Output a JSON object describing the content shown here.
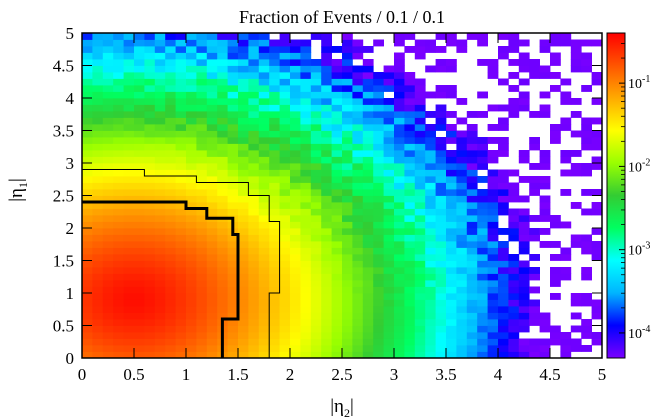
{
  "chart_data": {
    "type": "heatmap",
    "title": "Fraction of Events / 0.1 / 0.1",
    "xlabel": "|η₂|",
    "ylabel": "|η₁|",
    "xlim": [
      0,
      5
    ],
    "ylim": [
      0,
      5
    ],
    "bin_width": [
      0.1,
      0.1
    ],
    "x_ticks": [
      "0",
      "0.5",
      "1",
      "1.5",
      "2",
      "2.5",
      "3",
      "3.5",
      "4",
      "4.5",
      "5"
    ],
    "y_ticks": [
      "0",
      "0.5",
      "1",
      "1.5",
      "2",
      "2.5",
      "3",
      "3.5",
      "4",
      "4.5",
      "5"
    ],
    "z_scale": "log",
    "zlim": [
      5e-05,
      0.4
    ],
    "colorbar_labels": [
      {
        "value": 0.1,
        "base": "10",
        "exp": "-1"
      },
      {
        "value": 0.01,
        "base": "10",
        "exp": "-2"
      },
      {
        "value": 0.001,
        "base": "10",
        "exp": "-3"
      },
      {
        "value": 0.0001,
        "base": "10",
        "exp": "-4"
      }
    ],
    "colormap": [
      "#7a00ff",
      "#0000ff",
      "#00b4ff",
      "#00ffff",
      "#00ff60",
      "#33cc33",
      "#99ff00",
      "#ffff00",
      "#ffaa00",
      "#ff5500",
      "#ff0000"
    ],
    "peak": {
      "eta2": 0.5,
      "eta1": 0.9,
      "value": 0.35
    },
    "contours": [
      {
        "level": "inner",
        "style": "thick",
        "boundary_eta2_vs_eta1": [
          [
            1.35,
            0
          ],
          [
            1.35,
            0.5
          ],
          [
            1.5,
            0.6
          ],
          [
            1.5,
            1.5
          ],
          [
            1.45,
            1.9
          ],
          [
            1.2,
            2.15
          ],
          [
            1.0,
            2.3
          ],
          [
            0,
            2.4
          ]
        ]
      },
      {
        "level": "outer",
        "style": "thin",
        "boundary_eta2_vs_eta1": [
          [
            1.8,
            0
          ],
          [
            1.8,
            0.8
          ],
          [
            1.9,
            1.0
          ],
          [
            1.9,
            1.8
          ],
          [
            1.8,
            2.1
          ],
          [
            1.6,
            2.5
          ],
          [
            1.1,
            2.7
          ],
          [
            0.6,
            2.8
          ],
          [
            0.1,
            2.9
          ],
          [
            0,
            2.9
          ]
        ]
      }
    ],
    "grid": false,
    "legend": "colorbar-right"
  }
}
